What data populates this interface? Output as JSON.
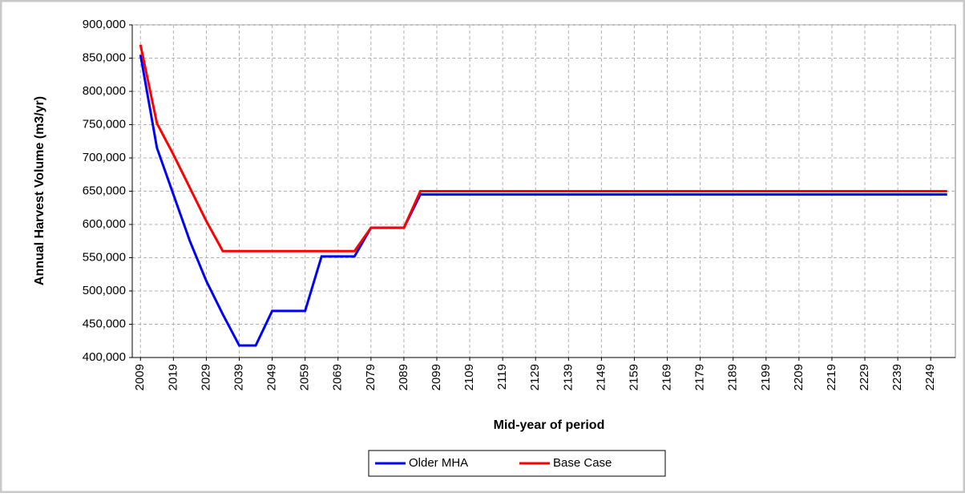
{
  "chart_data": {
    "type": "line",
    "x_label": "Mid-year of period",
    "y_label": "Annual Harvest Volume (m3/yr)",
    "x": [
      2009,
      2014,
      2019,
      2024,
      2029,
      2034,
      2039,
      2044,
      2049,
      2054,
      2059,
      2064,
      2069,
      2074,
      2079,
      2084,
      2089,
      2094,
      2099,
      2104,
      2109,
      2114,
      2119,
      2124,
      2129,
      2134,
      2139,
      2144,
      2149,
      2154,
      2159,
      2164,
      2169,
      2174,
      2179,
      2184,
      2189,
      2194,
      2199,
      2204,
      2209,
      2214,
      2219,
      2224,
      2229,
      2234,
      2239,
      2244,
      2249,
      2254
    ],
    "series": [
      {
        "name": "Older MHA",
        "color": "#0000ff",
        "values": [
          855000,
          715000,
          645000,
          575000,
          515000,
          465000,
          418000,
          418000,
          470000,
          470000,
          470000,
          552000,
          552000,
          552000,
          595000,
          595000,
          595000,
          645000,
          645000,
          645000,
          645000,
          645000,
          645000,
          645000,
          645000,
          645000,
          645000,
          645000,
          645000,
          645000,
          645000,
          645000,
          645000,
          645000,
          645000,
          645000,
          645000,
          645000,
          645000,
          645000,
          645000,
          645000,
          645000,
          645000,
          645000,
          645000,
          645000,
          645000,
          645000,
          645000
        ]
      },
      {
        "name": "Base Case",
        "color": "#ff0000",
        "values": [
          870000,
          752000,
          705000,
          655000,
          605000,
          560000,
          560000,
          560000,
          560000,
          560000,
          560000,
          560000,
          560000,
          560000,
          595000,
          595000,
          595000,
          650000,
          650000,
          650000,
          650000,
          650000,
          650000,
          650000,
          650000,
          650000,
          650000,
          650000,
          650000,
          650000,
          650000,
          650000,
          650000,
          650000,
          650000,
          650000,
          650000,
          650000,
          650000,
          650000,
          650000,
          650000,
          650000,
          650000,
          650000,
          650000,
          650000,
          650000,
          650000,
          650000
        ]
      }
    ],
    "xlim": [
      2006.5,
      2256.5
    ],
    "xticks": [
      2009,
      2019,
      2029,
      2039,
      2049,
      2059,
      2069,
      2079,
      2089,
      2099,
      2109,
      2119,
      2129,
      2139,
      2149,
      2159,
      2169,
      2179,
      2189,
      2199,
      2209,
      2219,
      2229,
      2239,
      2249
    ],
    "ylim": [
      400000,
      900000
    ],
    "yticks": [
      {
        "value": 400000,
        "label": "400,000"
      },
      {
        "value": 450000,
        "label": "450,000"
      },
      {
        "value": 500000,
        "label": "500,000"
      },
      {
        "value": 550000,
        "label": "550,000"
      },
      {
        "value": 600000,
        "label": "600,000"
      },
      {
        "value": 650000,
        "label": "650,000"
      },
      {
        "value": 700000,
        "label": "700,000"
      },
      {
        "value": 750000,
        "label": "750,000"
      },
      {
        "value": 800000,
        "label": "800,000"
      },
      {
        "value": 850000,
        "label": "850,000"
      },
      {
        "value": 900000,
        "label": "900,000"
      }
    ],
    "grid": true,
    "legend": "bottom"
  }
}
